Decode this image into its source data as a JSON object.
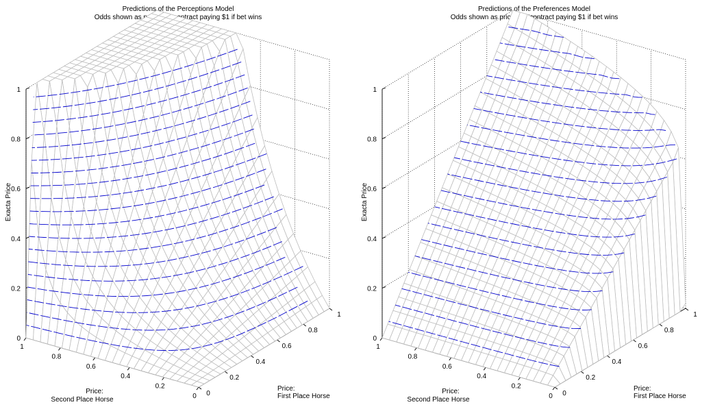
{
  "chart_data": [
    {
      "type": "surface",
      "title": "Predictions of the Perceptions Model",
      "subtitle": "Odds shown as price of a contract paying $1 if bet wins",
      "zlabel": "Exacta Price",
      "xlabel_line1": "Price:",
      "xlabel_line2": "Second Place Horse",
      "ylabel_line1": "Price:",
      "ylabel_line2": "First Place Horse",
      "x_ticks": [
        "0",
        "0.2",
        "0.4",
        "0.6",
        "0.8",
        "1"
      ],
      "y_ticks": [
        "0",
        "0.2",
        "0.4",
        "0.6",
        "0.8",
        "1"
      ],
      "z_ticks": [
        "0",
        "0.2",
        "0.4",
        "0.6",
        "0.8",
        "1"
      ],
      "xlim": [
        0,
        1
      ],
      "ylim": [
        0,
        1
      ],
      "zlim": [
        0,
        1
      ],
      "grid": true,
      "mesh_color": "#bdbdbd",
      "contour_color": "#0000cc",
      "contour_levels": [
        0.05,
        0.1,
        0.15,
        0.2,
        0.25,
        0.3,
        0.35,
        0.4,
        0.45,
        0.5,
        0.55,
        0.6,
        0.65,
        0.7,
        0.75,
        0.8,
        0.85,
        0.9,
        0.95
      ],
      "model": "perceptions"
    },
    {
      "type": "surface",
      "title": "Predictions of the Preferences Model",
      "subtitle": "Odds shown as price of a contract paying $1 if bet wins",
      "zlabel": "Exacta Price",
      "xlabel_line1": "Price:",
      "xlabel_line2": "Second Place Horse",
      "ylabel_line1": "Price:",
      "ylabel_line2": "First Place Horse",
      "x_ticks": [
        "0",
        "0.2",
        "0.4",
        "0.6",
        "0.8",
        "1"
      ],
      "y_ticks": [
        "0",
        "0.2",
        "0.4",
        "0.6",
        "0.8",
        "1"
      ],
      "z_ticks": [
        "0",
        "0.2",
        "0.4",
        "0.6",
        "0.8",
        "1"
      ],
      "xlim": [
        0,
        1
      ],
      "ylim": [
        0,
        1
      ],
      "zlim": [
        0,
        1
      ],
      "grid": true,
      "mesh_color": "#bdbdbd",
      "contour_color": "#0000cc",
      "contour_levels": [
        0.05,
        0.1,
        0.15,
        0.2,
        0.25,
        0.3,
        0.35,
        0.4,
        0.45,
        0.5,
        0.55,
        0.6,
        0.65,
        0.7,
        0.75,
        0.8,
        0.85,
        0.9,
        0.95
      ],
      "model": "preferences"
    }
  ]
}
